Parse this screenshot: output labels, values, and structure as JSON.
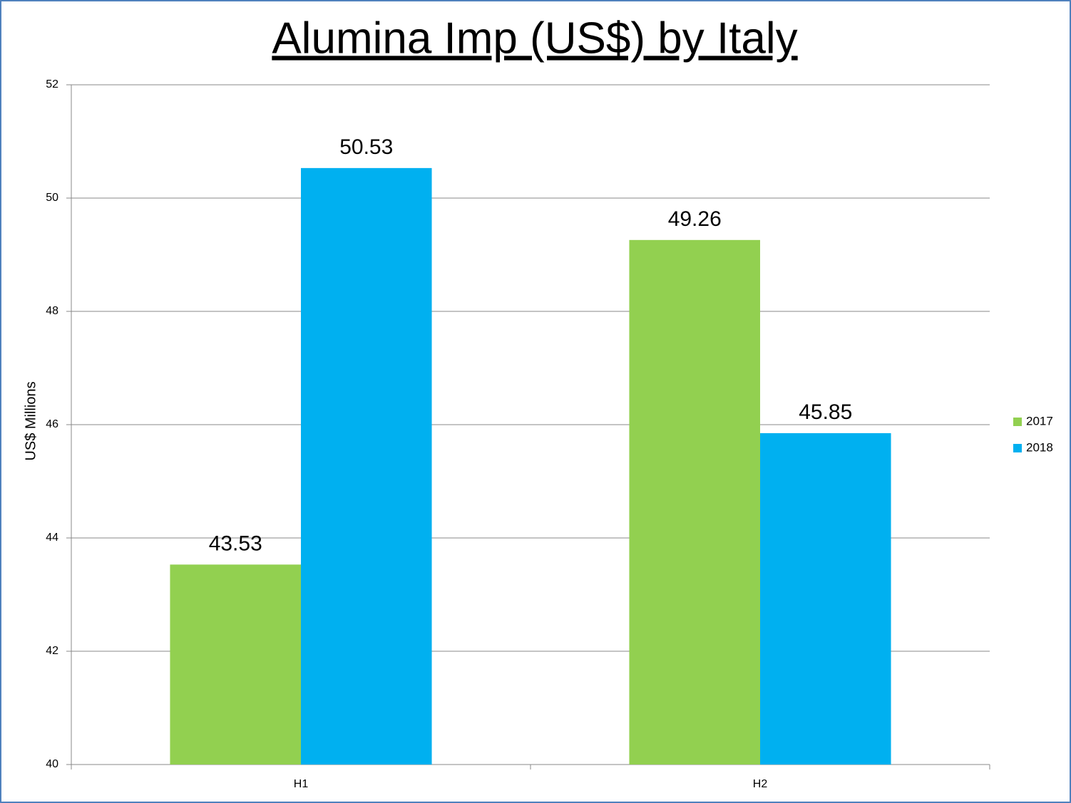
{
  "chart_data": {
    "type": "bar",
    "title": "Alumina Imp (US$) by Italy",
    "y_label": "US$ Millions",
    "categories": [
      "H1",
      "H2"
    ],
    "series": [
      {
        "name": "2017",
        "color": "#92d050",
        "values": [
          43.53,
          49.26
        ]
      },
      {
        "name": "2018",
        "color": "#00b0f0",
        "values": [
          50.53,
          45.85
        ]
      }
    ],
    "ylim": [
      40,
      52
    ],
    "yticks": [
      40,
      42,
      44,
      46,
      48,
      50,
      52
    ],
    "grid": true,
    "legend": "right"
  }
}
